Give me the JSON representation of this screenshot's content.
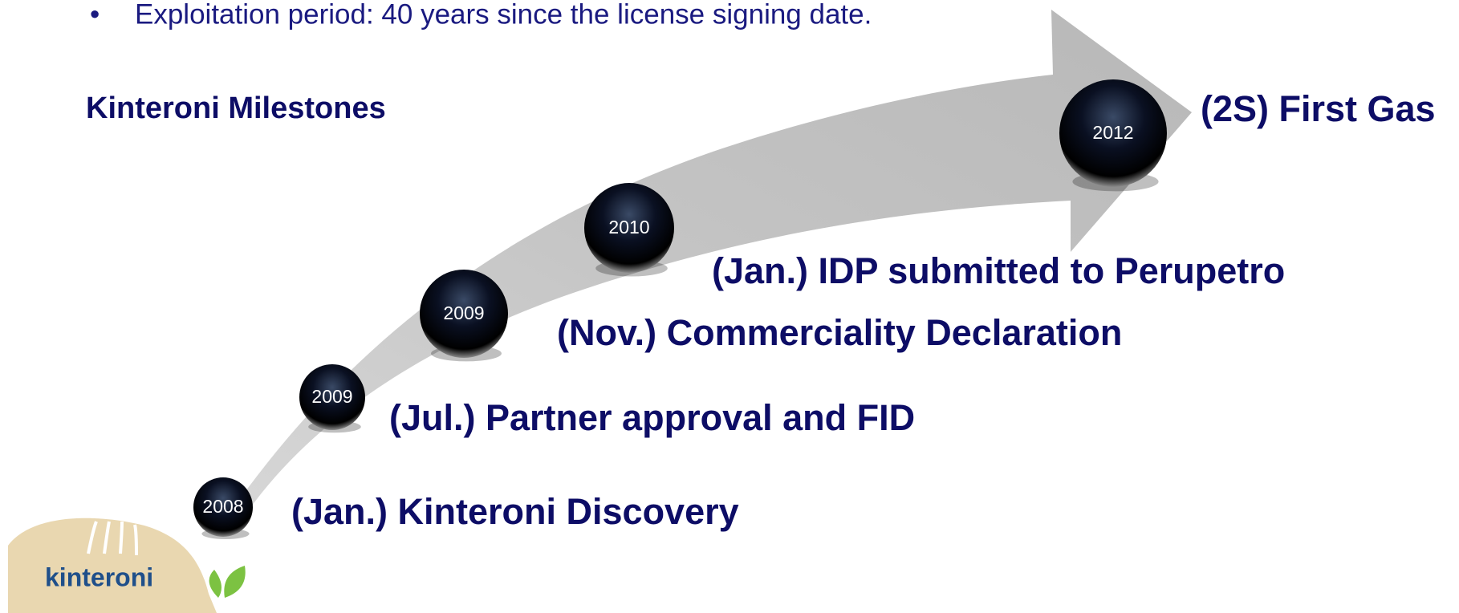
{
  "bullet": "Exploitation period: 40 years since the license signing date.",
  "heading": "Kinteroni Milestones",
  "milestones": [
    {
      "year": "2008",
      "label": "(Jan.) Kinteroni Discovery"
    },
    {
      "year": "2009",
      "label": "(Jul.) Partner approval and FID"
    },
    {
      "year": "2009",
      "label": "(Nov.) Commerciality Declaration"
    },
    {
      "year": "2010",
      "label": "(Jan.) IDP submitted to Perupetro"
    },
    {
      "year": "2012",
      "label": "(2S) First Gas"
    }
  ],
  "logo": "kinteroni"
}
